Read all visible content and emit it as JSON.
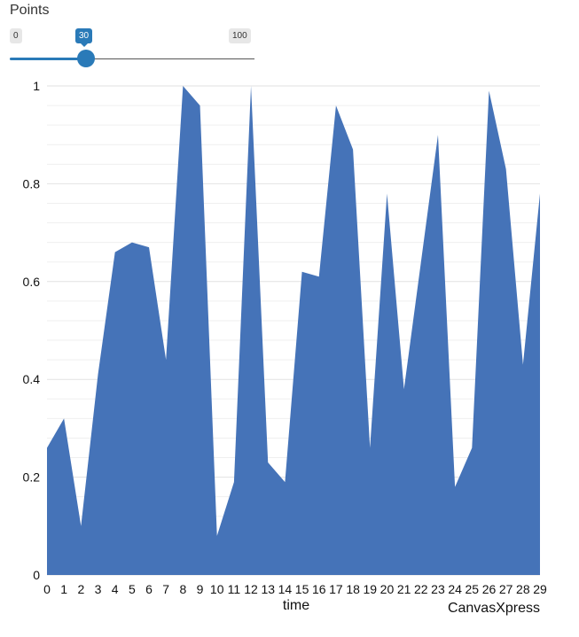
{
  "slider": {
    "label": "Points",
    "min_label": "0",
    "value_label": "30",
    "max_label": "100",
    "min": 0,
    "max": 100,
    "value": 30,
    "accent_color": "#2a7ab8"
  },
  "credit": "CanvasXpress",
  "chart_data": {
    "type": "area",
    "x": [
      0,
      1,
      2,
      3,
      4,
      5,
      6,
      7,
      8,
      9,
      10,
      11,
      12,
      13,
      14,
      15,
      16,
      17,
      18,
      19,
      20,
      21,
      22,
      23,
      24,
      25,
      26,
      27,
      28,
      29
    ],
    "series": [
      {
        "values": [
          0.26,
          0.32,
          0.1,
          0.41,
          0.66,
          0.68,
          0.67,
          0.44,
          1.0,
          0.96,
          0.08,
          0.19,
          1.0,
          0.23,
          0.19,
          0.62,
          0.61,
          0.96,
          0.87,
          0.26,
          0.78,
          0.38,
          0.64,
          0.9,
          0.18,
          0.26,
          0.99,
          0.83,
          0.43,
          0.78
        ],
        "color": "#4573b8"
      }
    ],
    "xlabel": "time",
    "ylabel": "",
    "ylim": [
      0,
      1
    ],
    "yticks": [
      "0",
      "0.2",
      "0.4",
      "0.6",
      "0.8",
      "1"
    ],
    "xticks": [
      "0",
      "1",
      "2",
      "3",
      "4",
      "5",
      "6",
      "7",
      "8",
      "9",
      "10",
      "11",
      "12",
      "13",
      "14",
      "15",
      "16",
      "17",
      "18",
      "19",
      "20",
      "21",
      "22",
      "23",
      "24",
      "25",
      "26",
      "27",
      "28",
      "29"
    ],
    "grid": true,
    "legend": "none"
  }
}
